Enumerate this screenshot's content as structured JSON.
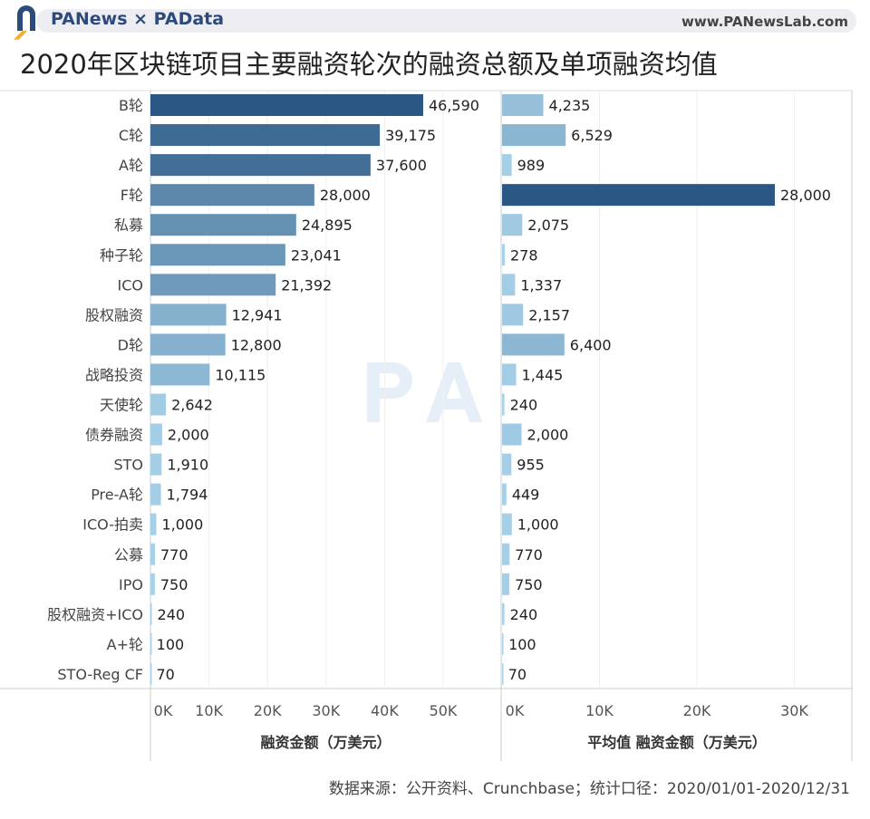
{
  "header": {
    "brand": "PANews × PAData",
    "url": "www.PANewsLab.com"
  },
  "title": "2020年区块链项目主要融资轮次的融资总额及单项融资均值",
  "watermark": "PAData",
  "footer": "数据来源：公开资料、Crunchbase；统计口径：2020/01/01-2020/12/31",
  "colors": {
    "low": "#a9d3ea",
    "high": "#2a5783"
  },
  "chart_data": [
    {
      "type": "bar",
      "orientation": "horizontal",
      "xlabel": "融资金额（万美元）",
      "xlim": [
        0,
        50000
      ],
      "ticks": [
        "0K",
        "10K",
        "20K",
        "30K",
        "40K",
        "50K"
      ],
      "grid": true,
      "categories": [
        "B轮",
        "C轮",
        "A轮",
        "F轮",
        "私募",
        "种子轮",
        "ICO",
        "股权融资",
        "D轮",
        "战略投资",
        "天使轮",
        "债券融资",
        "STO",
        "Pre-A轮",
        "ICO-拍卖",
        "公募",
        "IPO",
        "股权融资+ICO",
        "A+轮",
        "STO-Reg CF"
      ],
      "values": [
        46590,
        39175,
        37600,
        28000,
        24895,
        23041,
        21392,
        12941,
        12800,
        10115,
        2642,
        2000,
        1910,
        1794,
        1000,
        770,
        750,
        240,
        100,
        70
      ],
      "labels": [
        "46,590",
        "39,175",
        "37,600",
        "28,000",
        "24,895",
        "23,041",
        "21,392",
        "12,941",
        "12,800",
        "10,115",
        "2,642",
        "2,000",
        "1,910",
        "1,794",
        "1,000",
        "770",
        "750",
        "240",
        "100",
        "70"
      ]
    },
    {
      "type": "bar",
      "orientation": "horizontal",
      "xlabel": "平均值 融资金额（万美元）",
      "xlim": [
        0,
        30000
      ],
      "ticks": [
        "0K",
        "10K",
        "20K",
        "30K"
      ],
      "grid": true,
      "values": [
        4235,
        6529,
        989,
        28000,
        2075,
        278,
        1337,
        2157,
        6400,
        1445,
        240,
        2000,
        955,
        449,
        1000,
        770,
        750,
        240,
        100,
        70
      ],
      "labels": [
        "4,235",
        "6,529",
        "989",
        "28,000",
        "2,075",
        "278",
        "1,337",
        "2,157",
        "6,400",
        "1,445",
        "240",
        "2,000",
        "955",
        "449",
        "1,000",
        "770",
        "750",
        "240",
        "100",
        "70"
      ]
    }
  ]
}
